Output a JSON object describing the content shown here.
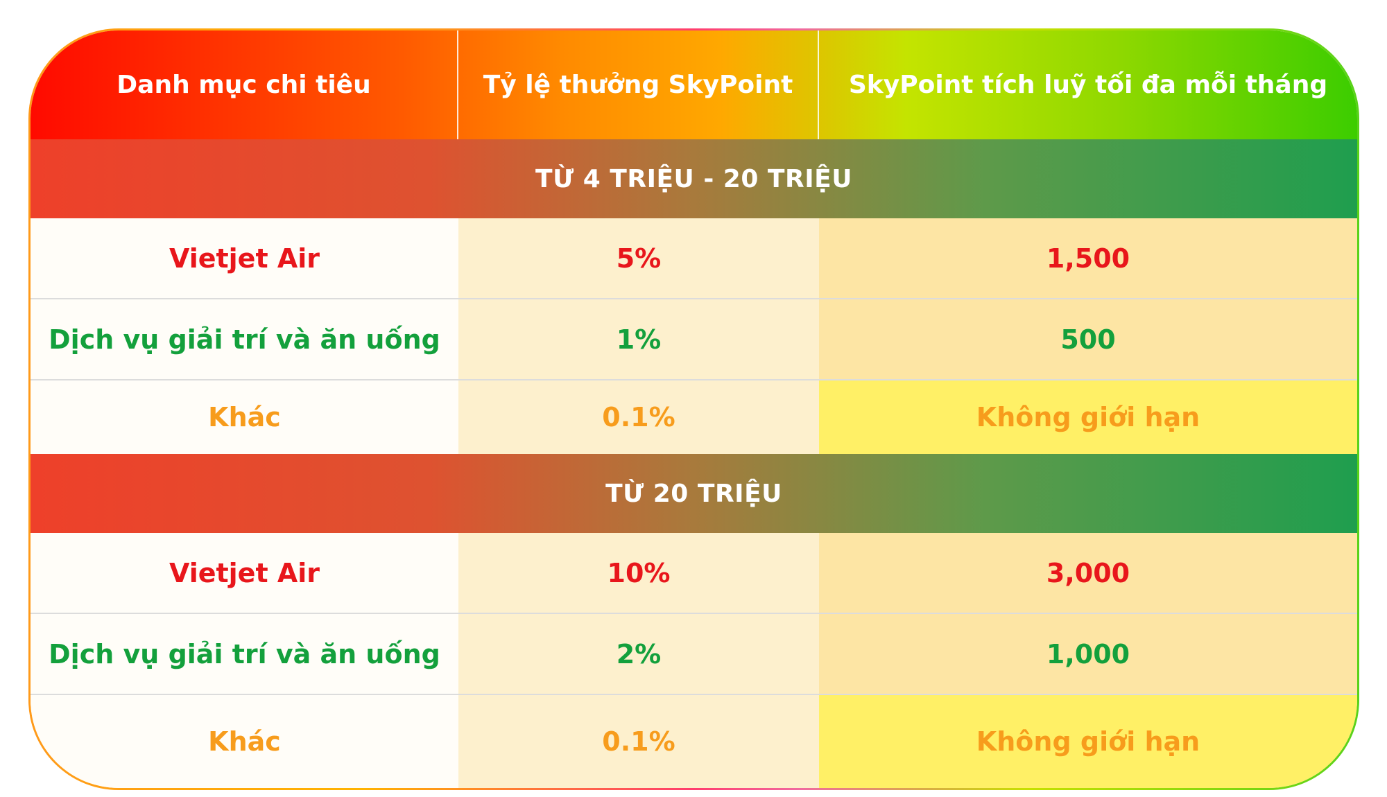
{
  "header": {
    "col1": "Danh mục chi tiêu",
    "col2": "Tỷ lệ thưởng SkyPoint",
    "col3": "SkyPoint tích luỹ tối đa mỗi tháng"
  },
  "sections": [
    {
      "title": "TỪ 4 TRIỆU - 20 TRIỆU",
      "rows": [
        {
          "category": "Vietjet Air",
          "rate": "5%",
          "max": "1,500",
          "color": "#e8161b"
        },
        {
          "category": "Dịch vụ giải trí và ăn uống",
          "rate": "1%",
          "max": "500",
          "color": "#13a03c"
        },
        {
          "category": "Khác",
          "rate": "0.1%",
          "max": "Không giới hạn",
          "color": "#f79c1c"
        }
      ]
    },
    {
      "title": "TỪ 20 TRIỆU",
      "rows": [
        {
          "category": "Vietjet Air",
          "rate": "10%",
          "max": "3,000",
          "color": "#e8161b"
        },
        {
          "category": "Dịch vụ giải trí và ăn uống",
          "rate": "2%",
          "max": "1,000",
          "color": "#13a03c"
        },
        {
          "category": "Khác",
          "rate": "0.1%",
          "max": "Không giới hạn",
          "color": "#f79c1c"
        }
      ]
    }
  ],
  "colors": {
    "red": "#e8161b",
    "green": "#13a03c",
    "orange": "#f79c1c",
    "section_band_left": "#ee402a",
    "section_band_right": "#1f9e4e"
  }
}
